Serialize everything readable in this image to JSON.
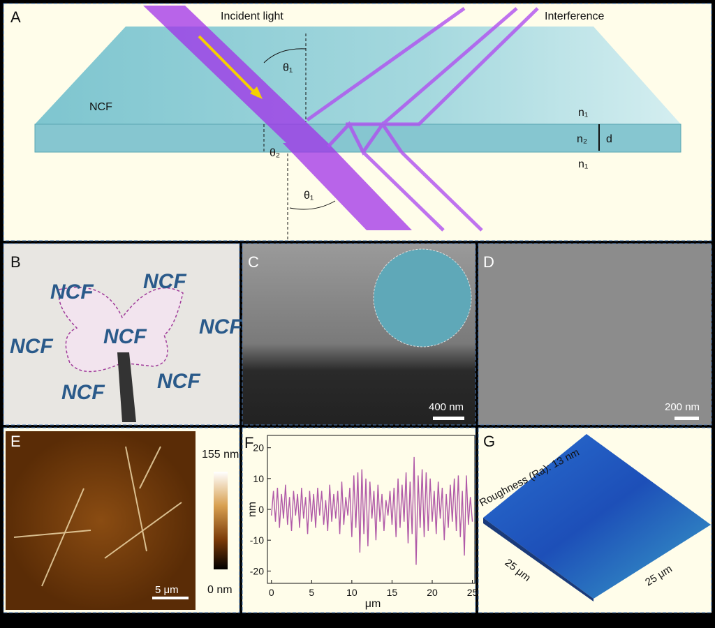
{
  "panel_a": {
    "label": "A",
    "incident": "Incident light",
    "interference": "Interference",
    "material": "NCF",
    "theta1_top": "θ₁",
    "theta1_bottom": "θ₁",
    "theta2": "θ₂",
    "n1_top": "n₁",
    "n2": "n₂",
    "n1_bottom": "n₁",
    "thickness": "d"
  },
  "panel_b": {
    "label": "B",
    "labels": [
      "NCF",
      "NCF",
      "NCF",
      "NCF",
      "NCF",
      "NCF",
      "NCF"
    ]
  },
  "panel_c": {
    "label": "C",
    "scale": "400 nm"
  },
  "panel_d": {
    "label": "D",
    "scale": "200 nm"
  },
  "panel_e": {
    "label": "E",
    "scale": "5 μm",
    "colorbar_max": "155 nm",
    "colorbar_min": "0 nm"
  },
  "panel_f": {
    "label": "F",
    "type": "line",
    "xlabel": "μm",
    "ylabel": "nm",
    "color": "#b05aa8",
    "x": [
      0,
      0.25,
      0.5,
      0.75,
      1,
      1.25,
      1.5,
      1.75,
      2,
      2.25,
      2.5,
      2.75,
      3,
      3.25,
      3.5,
      3.75,
      4,
      4.25,
      4.5,
      4.75,
      5,
      5.25,
      5.5,
      5.75,
      6,
      6.25,
      6.5,
      6.75,
      7,
      7.25,
      7.5,
      7.75,
      8,
      8.25,
      8.5,
      8.75,
      9,
      9.25,
      9.5,
      9.75,
      10,
      10.25,
      10.5,
      10.75,
      11,
      11.25,
      11.5,
      11.75,
      12,
      12.25,
      12.5,
      12.75,
      13,
      13.25,
      13.5,
      13.75,
      14,
      14.25,
      14.5,
      14.75,
      15,
      15.25,
      15.5,
      15.75,
      16,
      16.25,
      16.5,
      16.75,
      17,
      17.25,
      17.5,
      17.75,
      18,
      18.25,
      18.5,
      18.75,
      19,
      19.25,
      19.5,
      19.75,
      20,
      20.25,
      20.5,
      20.75,
      21,
      21.25,
      21.5,
      21.75,
      22,
      22.25,
      22.5,
      22.75,
      23,
      23.25,
      23.5,
      23.75,
      24,
      24.25,
      24.5,
      24.75,
      25
    ],
    "values": [
      -2,
      6,
      -4,
      7,
      -6,
      5,
      -3,
      8,
      -5,
      4,
      -7,
      6,
      -2,
      5,
      -6,
      7,
      -3,
      4,
      -8,
      6,
      -4,
      5,
      -6,
      7,
      -2,
      6,
      -5,
      3,
      -7,
      8,
      -4,
      5,
      -3,
      6,
      -8,
      9,
      -5,
      4,
      -2,
      7,
      -9,
      11,
      -6,
      12,
      -14,
      13,
      -8,
      10,
      -12,
      9,
      -3,
      6,
      -10,
      8,
      -4,
      5,
      -7,
      3,
      -2,
      6,
      -5,
      7,
      -9,
      10,
      -6,
      8,
      -4,
      12,
      -11,
      9,
      -8,
      17,
      -18,
      11,
      -6,
      13,
      -9,
      12,
      -7,
      10,
      -4,
      6,
      -8,
      9,
      -3,
      7,
      -10,
      5,
      -6,
      8,
      -4,
      10,
      -7,
      11,
      -9,
      6,
      -15,
      11,
      -5,
      4,
      -4
    ],
    "xlim": [
      -0.5,
      25.3
    ],
    "ylim": [
      -24,
      24
    ],
    "xticks": [
      0,
      5,
      10,
      15,
      20,
      25
    ],
    "yticks": [
      -20,
      -10,
      0,
      10,
      20
    ]
  },
  "panel_g": {
    "label": "G",
    "roughness": "Roughness (Ra): 13 nm",
    "x_size": "25 μm",
    "y_size": "25 μm"
  }
}
